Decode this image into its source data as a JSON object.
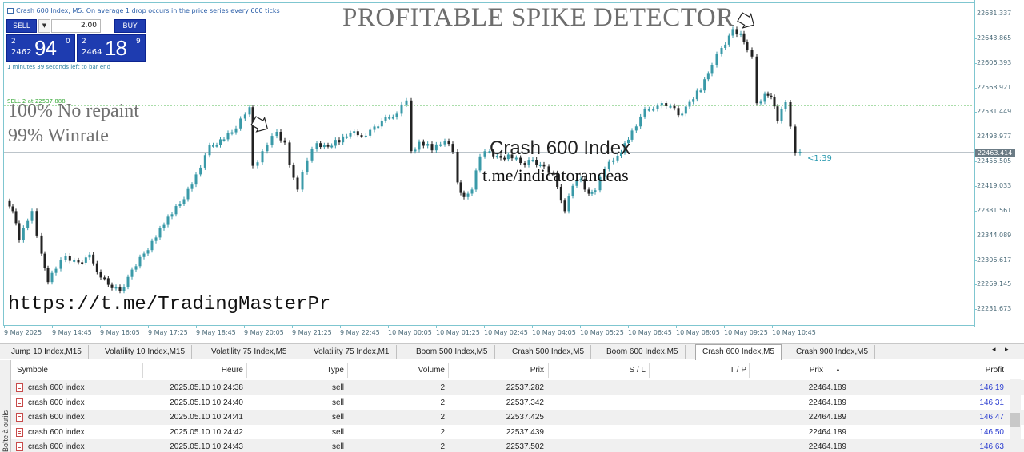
{
  "chart": {
    "title": "Crash 600 Index, M5:  On average 1 drop occurs in the price series every 600 ticks",
    "headline": "PROFITABLE SPIKE DETECTOR",
    "no_repaint": "100% No repaint",
    "winrate": "99% Winrate",
    "symbol_watermark": "Crash 600 Index",
    "telegram_watermark": "t.me/indicatorandeas",
    "bottom_url": "https://t.me/TradingMasterPr",
    "sell_level_label": "SELL 2 at 22537.888",
    "countdown": "<1:39",
    "bar_timer": "1 minutes 39 seconds left to bar end",
    "current_price": "22463.414",
    "price_ticks": [
      "22681.337",
      "22643.865",
      "22606.393",
      "22568.921",
      "22531.449",
      "22493.977",
      "22456.505",
      "22419.033",
      "22381.561",
      "22344.089",
      "22306.617",
      "22269.145",
      "22231.673"
    ],
    "time_ticks": [
      "9 May 2025",
      "9 May 14:45",
      "9 May 16:05",
      "9 May 17:25",
      "9 May 18:45",
      "9 May 20:05",
      "9 May 21:25",
      "9 May 22:45",
      "10 May 00:05",
      "10 May 01:25",
      "10 May 02:45",
      "10 May 04:05",
      "10 May 05:25",
      "10 May 06:45",
      "10 May 08:05",
      "10 May 09:25",
      "10 May 10:45"
    ],
    "colors": {
      "bull": "#3a9aa8",
      "bear": "#222222",
      "sell_level": "#55bb55",
      "bid_line": "#7a8a94",
      "frame": "#7fc6d0"
    }
  },
  "trade_panel": {
    "sell_label": "SELL",
    "buy_label": "BUY",
    "lot": "2.00",
    "lot_down_icon": "triangle-down-icon",
    "sell_quote_top": "2",
    "sell_quote_bottom": "2462",
    "sell_quote_big": "94",
    "sell_quote_sup": "0",
    "buy_quote_top": "2",
    "buy_quote_bottom": "2464",
    "buy_quote_big": "18",
    "buy_quote_sup": "9"
  },
  "tabs": [
    {
      "label": "Jump 10 Index,M15",
      "active": false
    },
    {
      "label": "Volatility 10 Index,M15",
      "active": false
    },
    {
      "label": "Volatility 75 Index,M5",
      "active": false
    },
    {
      "label": "Volatility 75 Index,M1",
      "active": false
    },
    {
      "label": "Boom 500 Index,M5",
      "active": false
    },
    {
      "label": "Crash 500 Index,M5",
      "active": false
    },
    {
      "label": "Boom 600 Index,M5",
      "active": false
    },
    {
      "label": "Crash 600 Index,M5",
      "active": true
    },
    {
      "label": "Crash 900 Index,M5",
      "active": false
    }
  ],
  "toolbox_label": "Boîte à outils",
  "table": {
    "headers": {
      "symbol": "Symbole",
      "time": "Heure",
      "type": "Type",
      "volume": "Volume",
      "price": "Prix",
      "sl": "S / L",
      "tp": "T / P",
      "cur_price": "Prix",
      "profit": "Profit"
    },
    "rows": [
      {
        "symbol": "crash 600 index",
        "time": "2025.05.10 10:24:38",
        "type": "sell",
        "volume": "2",
        "price": "22537.282",
        "sl": "",
        "tp": "",
        "cur_price": "22464.189",
        "profit": "146.19"
      },
      {
        "symbol": "crash 600 index",
        "time": "2025.05.10 10:24:40",
        "type": "sell",
        "volume": "2",
        "price": "22537.342",
        "sl": "",
        "tp": "",
        "cur_price": "22464.189",
        "profit": "146.31"
      },
      {
        "symbol": "crash 600 index",
        "time": "2025.05.10 10:24:41",
        "type": "sell",
        "volume": "2",
        "price": "22537.425",
        "sl": "",
        "tp": "",
        "cur_price": "22464.189",
        "profit": "146.47"
      },
      {
        "symbol": "crash 600 index",
        "time": "2025.05.10 10:24:42",
        "type": "sell",
        "volume": "2",
        "price": "22537.439",
        "sl": "",
        "tp": "",
        "cur_price": "22464.189",
        "profit": "146.50"
      },
      {
        "symbol": "crash 600 index",
        "time": "2025.05.10 10:24:43",
        "type": "sell",
        "volume": "2",
        "price": "22537.502",
        "sl": "",
        "tp": "",
        "cur_price": "22464.189",
        "profit": "146.63"
      }
    ]
  }
}
